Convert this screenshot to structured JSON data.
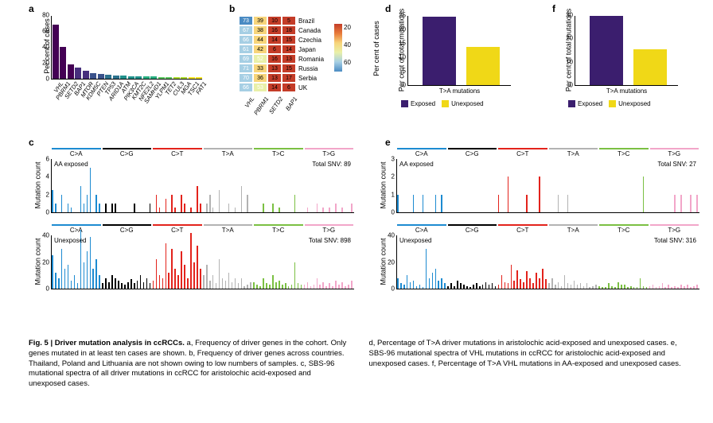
{
  "panel_labels": {
    "a": "a",
    "b": "b",
    "c": "c",
    "d": "d",
    "e": "e",
    "f": "f"
  },
  "colors": {
    "exposed": "#3b1e6e",
    "unexposed": "#f0d817",
    "viridis": [
      "#440154",
      "#472f7d",
      "#3a528b",
      "#2c728e",
      "#21918c",
      "#28ae80",
      "#5ec962",
      "#addc30",
      "#fde725"
    ],
    "sbs": {
      "C>A": "#1d8bd1",
      "C>G": "#000000",
      "C>T": "#e3231c",
      "T>A": "#b3b3b3",
      "T>C": "#7bc043",
      "T>G": "#f2a6c9"
    },
    "heat_scale": [
      "#c43c28",
      "#e87b3a",
      "#f7d57a",
      "#e9f0a8",
      "#a6cfe4",
      "#4a8bc3"
    ]
  },
  "panel_a": {
    "ylabel": "Per cent of cases",
    "ymax": 80,
    "ytick_step": 20,
    "genes": [
      "VHL",
      "PBRM1",
      "SETD2",
      "BAP1",
      "MTOR",
      "KDM5C",
      "PTEN",
      "TP53",
      "ARID1A",
      "ATM",
      "PIK3CA",
      "KMT2C",
      "NFE2L2",
      "SAMHD1",
      "YLPM1",
      "TET2",
      "CUL3",
      "MGA",
      "TSC1",
      "FAT1"
    ],
    "values": [
      68,
      40,
      18,
      14,
      10,
      7,
      6,
      5,
      4.5,
      4,
      3.5,
      3,
      3,
      2.8,
      2.5,
      2.3,
      2,
      2,
      2,
      2
    ]
  },
  "panel_b": {
    "genes": [
      "VHL",
      "PBRM1",
      "SETD2",
      "BAP1"
    ],
    "countries": [
      "Brazil",
      "Canada",
      "Czechia",
      "Japan",
      "Romania",
      "Russia",
      "Serbia",
      "UK"
    ],
    "cells": [
      [
        73,
        39,
        10,
        5
      ],
      [
        67,
        38,
        16,
        18
      ],
      [
        66,
        44,
        14,
        15
      ],
      [
        61,
        42,
        6,
        14
      ],
      [
        69,
        52,
        16,
        13
      ],
      [
        71,
        33,
        13,
        15
      ],
      [
        70,
        36,
        13,
        17
      ],
      [
        66,
        53,
        14,
        6
      ]
    ],
    "cb_label": "Per cent of cases",
    "cb_ticks": [
      20,
      40,
      60
    ]
  },
  "panel_d": {
    "ylabel": "Per cent of total mutations",
    "xlabel": "T>A mutations",
    "ymax": 25,
    "ytick_step": 5,
    "bars": [
      {
        "label": "Exposed",
        "value": 24.5,
        "color": "#3b1e6e"
      },
      {
        "label": "Unexposed",
        "value": 13.5,
        "color": "#f0d817"
      }
    ]
  },
  "panel_f": {
    "ylabel": "Per cent of total mutations",
    "xlabel": "T>A mutations",
    "ymax": 30,
    "ytick_step": 10,
    "bars": [
      {
        "label": "Exposed",
        "value": 29.5,
        "color": "#3b1e6e"
      },
      {
        "label": "Unexposed",
        "value": 15.5,
        "color": "#f0d817"
      }
    ]
  },
  "panel_c": {
    "ylabel": "Mutation count",
    "categories": [
      "C>A",
      "C>G",
      "C>T",
      "T>A",
      "T>C",
      "T>G"
    ],
    "sub1": {
      "label": "AA exposed",
      "total": "Total SNV: 89",
      "ymax": 6,
      "ytick_step": 2,
      "bars": [
        2.5,
        1,
        0,
        2,
        0,
        1,
        0.5,
        0,
        0,
        3,
        1,
        2,
        5,
        0,
        2,
        1,
        0,
        1,
        0,
        1,
        1,
        0,
        0,
        0,
        0,
        0,
        1,
        0,
        0,
        0,
        0,
        1,
        0,
        2,
        0.5,
        0,
        1.5,
        0,
        2,
        0.5,
        0,
        2,
        1,
        0,
        0.5,
        0,
        3,
        1,
        0,
        1,
        2,
        0.5,
        0,
        2.5,
        0,
        0,
        1,
        0,
        0.5,
        0,
        3,
        0,
        2,
        0,
        0,
        0,
        0,
        1,
        0,
        0,
        1,
        0,
        0.5,
        0,
        0,
        0,
        0,
        2,
        0,
        0,
        0,
        0.5,
        0,
        0,
        1,
        0,
        0.5,
        0,
        0.5,
        0,
        1,
        0,
        0.5,
        0,
        0,
        1
      ]
    },
    "sub2": {
      "label": "Unexposed",
      "total": "Total SNV: 898",
      "ymax": 40,
      "ytick_step": 20,
      "bars": [
        25,
        12,
        8,
        30,
        15,
        18,
        6,
        10,
        4,
        44,
        20,
        28,
        39,
        15,
        22,
        10,
        4,
        8,
        5,
        10,
        8,
        6,
        4,
        3,
        5,
        7,
        4,
        6,
        10,
        5,
        8,
        4,
        6,
        22,
        10,
        8,
        34,
        12,
        30,
        15,
        10,
        28,
        18,
        8,
        42,
        20,
        32,
        15,
        10,
        18,
        6,
        10,
        4,
        22,
        8,
        6,
        12,
        5,
        8,
        4,
        8,
        2,
        3,
        5,
        5,
        3,
        2,
        8,
        4,
        3,
        10,
        5,
        6,
        3,
        4,
        2,
        3,
        20,
        4,
        3,
        3,
        5,
        2,
        3,
        8,
        3,
        5,
        2,
        4,
        2,
        6,
        3,
        5,
        2,
        3,
        6
      ]
    }
  },
  "panel_e": {
    "ylabel": "Mutation count",
    "categories": [
      "C>A",
      "C>G",
      "C>T",
      "T>A",
      "T>C",
      "T>G"
    ],
    "sub1": {
      "label": "AA exposed",
      "total": "Total SNV: 27",
      "ymax": 3,
      "ytick_step": 1,
      "bars": [
        1,
        0,
        0,
        0,
        0,
        1,
        0,
        0,
        1,
        0,
        0,
        0,
        1,
        0,
        1,
        0,
        0,
        0,
        0,
        0,
        0,
        0,
        0,
        0,
        0,
        0,
        0,
        0,
        0,
        0,
        0,
        0,
        1,
        0,
        0,
        2,
        0,
        0,
        0,
        0,
        0,
        1,
        0,
        0,
        0,
        2,
        0,
        0,
        0,
        0,
        0,
        1,
        0,
        0,
        1,
        0,
        0,
        0,
        0,
        0,
        0,
        0,
        0,
        0,
        0,
        0,
        0,
        0,
        0,
        0,
        0,
        0,
        0,
        0,
        0,
        0,
        0,
        0,
        2,
        0,
        0,
        0,
        0,
        0,
        0,
        0,
        0,
        0,
        1,
        0,
        1,
        0,
        0,
        1,
        0,
        1
      ]
    },
    "sub2": {
      "label": "Unexposed",
      "total": "Total SNV: 316",
      "ymax": 40,
      "ytick_step": 20,
      "bars": [
        8,
        4,
        3,
        10,
        5,
        6,
        2,
        3,
        1,
        30,
        8,
        12,
        15,
        6,
        8,
        4,
        2,
        4,
        2,
        6,
        4,
        3,
        2,
        1,
        3,
        4,
        2,
        3,
        5,
        3,
        4,
        2,
        3,
        10,
        5,
        4,
        18,
        6,
        14,
        7,
        5,
        13,
        8,
        4,
        12,
        8,
        15,
        7,
        4,
        8,
        3,
        5,
        2,
        10,
        4,
        3,
        6,
        3,
        4,
        2,
        4,
        1,
        2,
        3,
        2,
        1,
        1,
        4,
        2,
        1,
        5,
        3,
        3,
        1,
        2,
        1,
        1,
        8,
        2,
        1,
        2,
        3,
        1,
        2,
        4,
        1,
        3,
        1,
        2,
        1,
        3,
        2,
        3,
        1,
        2,
        3
      ]
    }
  },
  "caption": {
    "left": "Fig. 5 | Driver mutation analysis in ccRCCs. a, Frequency of driver genes in the cohort. Only genes mutated in at least ten cases are shown. b, Frequency of driver genes across countries. Thailand, Poland and Lithuania are not shown owing to low numbers of samples. c, SBS-96 mutational spectra of all driver mutations in ccRCC for aristolochic acid-exposed and unexposed cases.",
    "right": "d, Percentage of T>A driver mutations in aristolochic acid-exposed and unexposed cases. e, SBS-96 mutational spectra of VHL mutations in ccRCC for aristolochic acid-exposed and unexposed cases. f, Percentage of T>A VHL mutations in AA-exposed and unexposed cases."
  }
}
